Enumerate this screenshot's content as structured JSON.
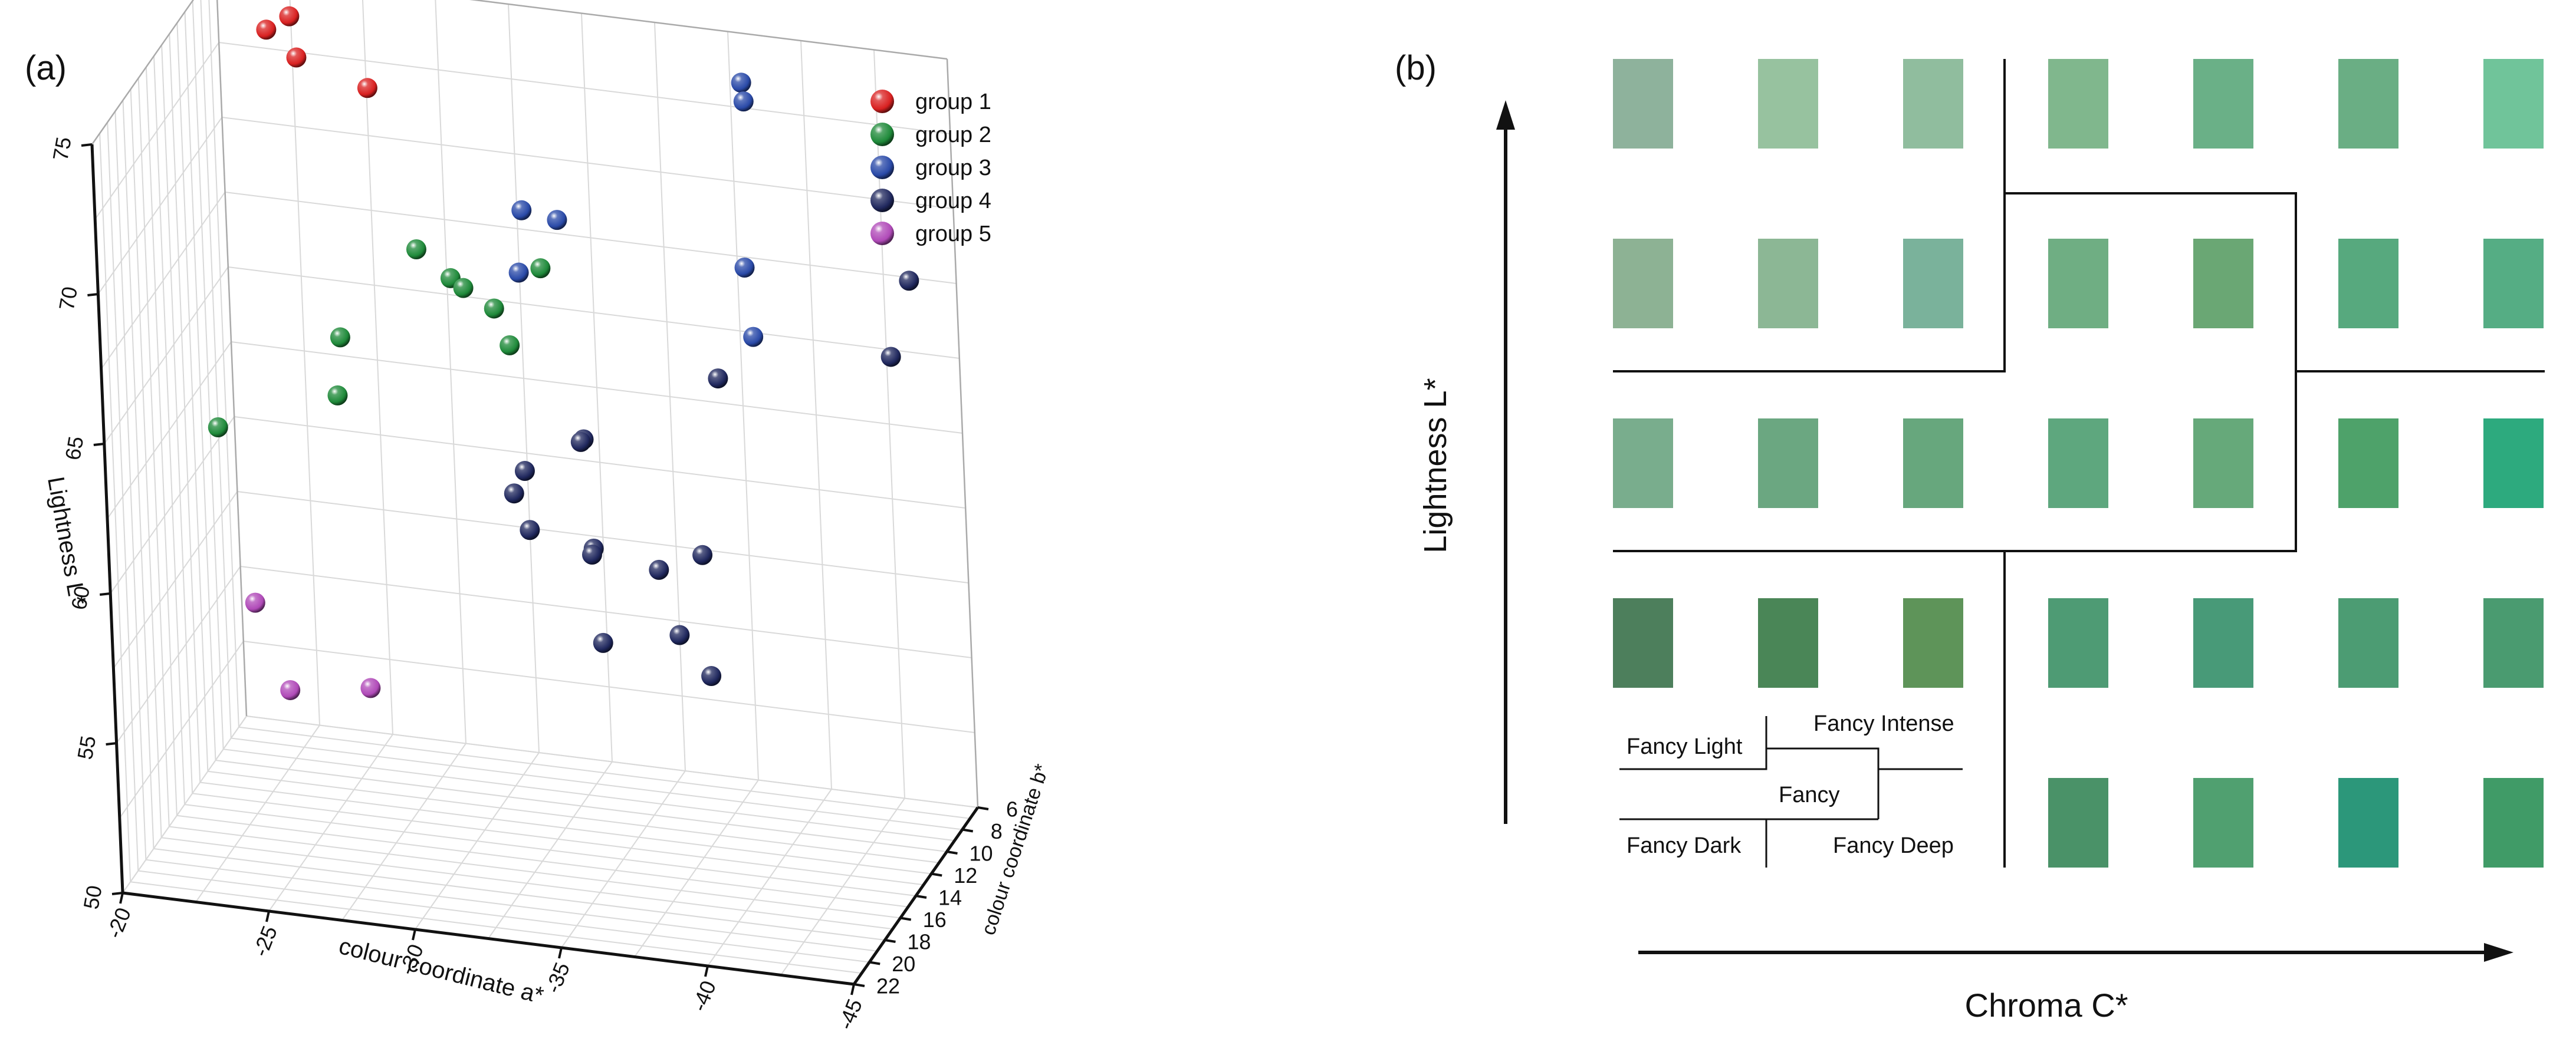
{
  "panels": {
    "a_label": "(a)",
    "b_label": "(b)"
  },
  "chart_data": [
    {
      "type": "scatter3d",
      "panel": "(a)",
      "zlabel": "Lightness L*",
      "xlabel": "colour coordinate a*",
      "ylabel": "colour coordinate b*",
      "xlim": [
        -20,
        -45
      ],
      "ylim": [
        6,
        22
      ],
      "zlim": [
        50,
        75
      ],
      "x_ticks": [
        "-20",
        "-25",
        "-30",
        "-35",
        "-40",
        "-45"
      ],
      "y_ticks": [
        "6",
        "8",
        "10",
        "12",
        "14",
        "16",
        "18",
        "20",
        "22"
      ],
      "z_ticks": [
        "50",
        "55",
        "60",
        "65",
        "70",
        "75"
      ],
      "grid": true,
      "legend_position": "top-right",
      "series": [
        {
          "name": "group 1",
          "color": "#d92121",
          "points": [
            [
              -21.3,
              6.8,
              75.9
            ],
            [
              -24.4,
              7.1,
              75.6
            ],
            [
              -25.2,
              7.9,
              76.4
            ],
            [
              -23.1,
              8.3,
              74.6
            ],
            [
              -22.6,
              9.4,
              74.5
            ],
            [
              -24.3,
              11.9,
              74.7
            ],
            [
              -25.6,
              8.0,
              72.4
            ]
          ]
        },
        {
          "name": "group 2",
          "color": "#1f8a3a",
          "points": [
            [
              -27.9,
              11.0,
              68.4
            ],
            [
              -29.4,
              12.3,
              68.1
            ],
            [
              -26.4,
              15.4,
              66.9
            ],
            [
              -30.6,
              11.4,
              66.9
            ],
            [
              -31.9,
              14.3,
              66.9
            ],
            [
              -29.6,
              11.5,
              67.5
            ],
            [
              -31.8,
              9.8,
              67.8
            ],
            [
              -26.2,
              15.3,
              64.9
            ],
            [
              -21.4,
              13.0,
              62.4
            ]
          ]
        },
        {
          "name": "group 3",
          "color": "#2a4aa8",
          "points": [
            [
              -38.0,
              6.4,
              73.5
            ],
            [
              -32.3,
              13.6,
              71.2
            ],
            [
              -38.0,
              6.2,
              72.8
            ],
            [
              -33.0,
              11.8,
              70.3
            ],
            [
              -32.4,
              14.6,
              69.5
            ],
            [
              -38.9,
              10.1,
              68.8
            ],
            [
              -40.0,
              13.3,
              67.8
            ]
          ]
        },
        {
          "name": "group 4",
          "color": "#20285e",
          "points": [
            [
              -43.8,
              7.5,
              68.0
            ],
            [
              -44.0,
              10.8,
              66.7
            ],
            [
              -38.9,
              13.9,
              66.5
            ],
            [
              -34.9,
              16.4,
              64.9
            ],
            [
              -34.8,
              16.4,
              64.8
            ],
            [
              -33.4,
              18.4,
              64.4
            ],
            [
              -33.0,
              18.4,
              63.6
            ],
            [
              -33.6,
              18.8,
              62.6
            ],
            [
              -35.6,
              18.2,
              62.0
            ],
            [
              -36.1,
              20.2,
              62.6
            ],
            [
              -39.3,
              18.1,
              62.2
            ],
            [
              -37.7,
              17.8,
              61.4
            ],
            [
              -36.3,
              20.0,
              59.6
            ],
            [
              -38.6,
              18.8,
              59.7
            ],
            [
              -39.8,
              19.4,
              58.7
            ]
          ]
        },
        {
          "name": "group 5",
          "color": "#b04ab8",
          "points": [
            [
              -23.5,
              16.8,
              58.2
            ],
            [
              -27.4,
              17.0,
              55.9
            ],
            [
              -25.2,
              19.0,
              56.3
            ]
          ]
        }
      ]
    },
    {
      "type": "table",
      "panel": "(b)",
      "xlabel": "Chroma C*",
      "ylabel": "Lightness L*",
      "grid_colors": [
        [
          "#8eb29c",
          "#97c29f",
          "#90bd9e",
          "#80b78d",
          "#6ab087",
          "#6aae84",
          "#70c49a"
        ],
        [
          "#8db294",
          "#8cb795",
          "#7ab29b",
          "#6fae83",
          "#6aa774",
          "#57a97e",
          "#55ad84"
        ],
        [
          "#79ad8d",
          "#6ba781",
          "#67a77d",
          "#5ea77e",
          "#66a97a",
          "#4ea26a",
          "#2daa7e"
        ],
        [
          "#4d7f5c",
          "#4a8657",
          "#5e9459",
          "#4e9b74",
          "#489a78",
          "#4c9c73",
          "#4a9b70"
        ],
        [
          "",
          "",
          "",
          "#4a9268",
          "#50a070",
          "#2c977a",
          "#409b67"
        ]
      ],
      "zone_labels": {
        "fancy_light": "Fancy Light",
        "fancy_intense": "Fancy Intense",
        "fancy": "Fancy",
        "fancy_dark": "Fancy Dark",
        "fancy_deep": "Fancy Deep"
      }
    }
  ]
}
